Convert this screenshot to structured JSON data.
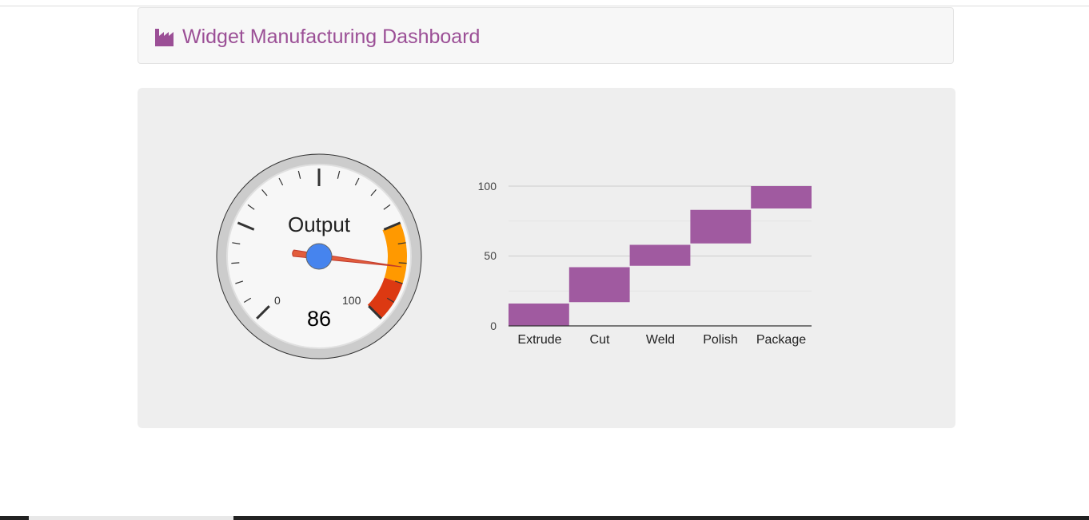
{
  "header": {
    "title": "Widget Manufacturing Dashboard",
    "icon": "factory-icon",
    "color": "#9b4f96"
  },
  "gauge": {
    "label": "Output",
    "value": 86,
    "min": 0,
    "max": 100,
    "min_label": "0",
    "max_label": "100",
    "value_label": "86",
    "yellow_range": [
      75,
      90
    ],
    "red_range": [
      90,
      100
    ],
    "colors": {
      "yellow": "#ff9900",
      "red": "#dc3912",
      "needle": "#e25d3c",
      "hub": "#4684ee"
    }
  },
  "chart_data": {
    "type": "bar",
    "subtype": "waterfall",
    "categories": [
      "Extrude",
      "Cut",
      "Weld",
      "Polish",
      "Package"
    ],
    "ranges": [
      [
        0,
        16
      ],
      [
        17,
        42
      ],
      [
        43,
        58
      ],
      [
        59,
        83
      ],
      [
        84,
        100
      ]
    ],
    "y_ticks": [
      "0",
      "50",
      "100"
    ],
    "ylim": [
      0,
      100
    ],
    "grid": true,
    "color": "#a05aa0"
  }
}
